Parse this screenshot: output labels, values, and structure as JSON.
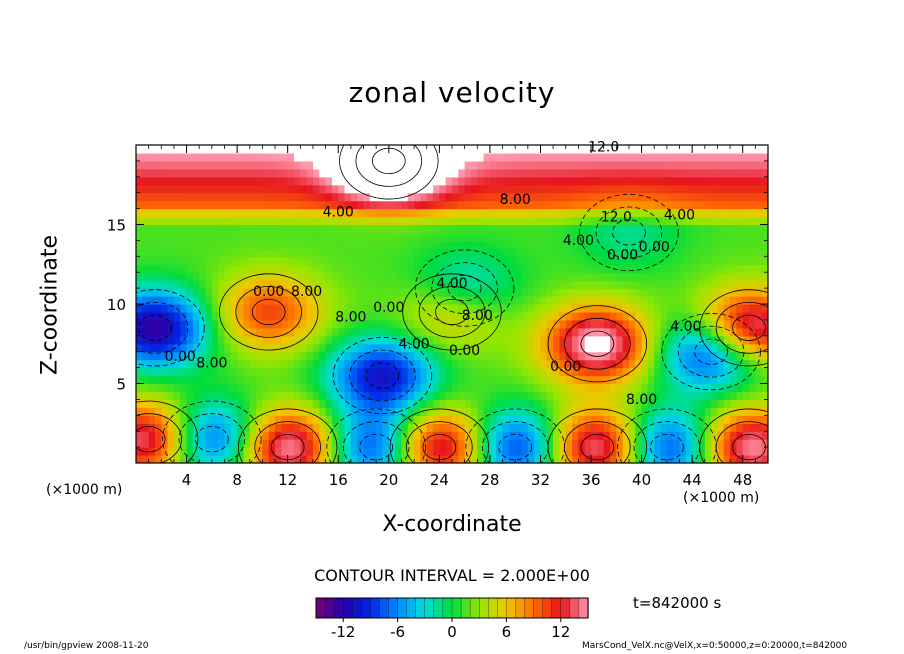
{
  "chart_data": {
    "type": "heatmap",
    "title": "zonal velocity",
    "xlabel": "X-coordinate",
    "ylabel": "Z-coordinate",
    "x_scale_label": "(×1000 m)",
    "y_scale_label": "(×1000 m)",
    "xlim": [
      0,
      50
    ],
    "ylim": [
      0,
      20
    ],
    "x_ticks": [
      4,
      8,
      12,
      16,
      20,
      24,
      28,
      32,
      36,
      40,
      44,
      48
    ],
    "y_ticks": [
      5,
      10,
      15
    ],
    "contour_interval_text": "CONTOUR INTERVAL = 2.000E+00",
    "contour_labels": [
      "12.0",
      "12.0",
      "8.00",
      "4.00",
      "8.00",
      "4.00",
      "0.00",
      "8.00",
      "4.00",
      "0.00",
      "8.00",
      "4.00",
      "0.00",
      "8.00",
      "4.00",
      "0.00",
      "4.00",
      "8.00",
      "0.00",
      "0.00",
      "0.00"
    ],
    "colorbar": {
      "range": [
        -15,
        15
      ],
      "tick_labels": [
        "-12",
        "-6",
        "0",
        "6",
        "12"
      ],
      "tick_values": [
        -12,
        -6,
        0,
        6,
        12
      ]
    },
    "features": [
      {
        "x": 1.5,
        "z": 8.5,
        "value": -14
      },
      {
        "x": 10.5,
        "z": 9.5,
        "value": 9
      },
      {
        "x": 19.5,
        "z": 5.5,
        "value": -12
      },
      {
        "x": 36.5,
        "z": 7.5,
        "value": 15
      },
      {
        "x": 45.5,
        "z": 7.0,
        "value": -12
      },
      {
        "x": 48.5,
        "z": 8.5,
        "value": 15
      },
      {
        "x": 26.0,
        "z": 11.0,
        "value": -6
      },
      {
        "x": 25.0,
        "z": 9.5,
        "value": 6
      },
      {
        "x": 1.0,
        "z": 1.5,
        "value": 14
      },
      {
        "x": 6.0,
        "z": 1.5,
        "value": -12
      },
      {
        "x": 12.0,
        "z": 1.0,
        "value": 15
      },
      {
        "x": 19.0,
        "z": 1.0,
        "value": -12
      },
      {
        "x": 24.0,
        "z": 1.0,
        "value": 15
      },
      {
        "x": 30.0,
        "z": 1.0,
        "value": -12
      },
      {
        "x": 36.5,
        "z": 1.0,
        "value": 15
      },
      {
        "x": 42.0,
        "z": 1.0,
        "value": -12
      },
      {
        "x": 48.5,
        "z": 1.0,
        "value": 14
      },
      {
        "x": 39.0,
        "z": 14.5,
        "value": -3
      },
      {
        "x": 20.0,
        "z": 19.0,
        "value": 14
      }
    ]
  },
  "time_label": "t=842000 s",
  "footer_left": "/usr/bin/gpview   2008-11-20",
  "footer_right": "MarsCond_VelX.nc@VelX,x=0:50000,z=0:20000,t=842000"
}
